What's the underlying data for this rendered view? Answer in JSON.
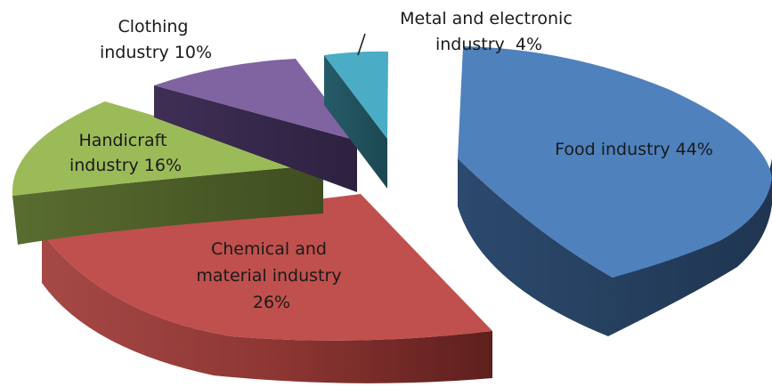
{
  "chart_data": {
    "type": "pie",
    "style": "3d-exploded",
    "labels": [
      "Food industry",
      "Chemical and material industry",
      "Handicraft industry",
      "Clothing industry",
      "Metal and electronic industry"
    ],
    "values": [
      44,
      26,
      16,
      10,
      4
    ],
    "unit": "%",
    "colors": [
      "#4f81bd",
      "#c0504d",
      "#9bbb59",
      "#8064a2",
      "#4bacc6"
    ],
    "data_labels": {
      "food": [
        "Food industry 44%"
      ],
      "chemical": [
        "Chemical and",
        "material industry",
        "26%"
      ],
      "handicraft": [
        "Handicraft",
        "industry 16%"
      ],
      "clothing": [
        "Clothing",
        "industry 10%"
      ],
      "metal": [
        "Metal and electronic",
        "industry  4%"
      ]
    }
  }
}
